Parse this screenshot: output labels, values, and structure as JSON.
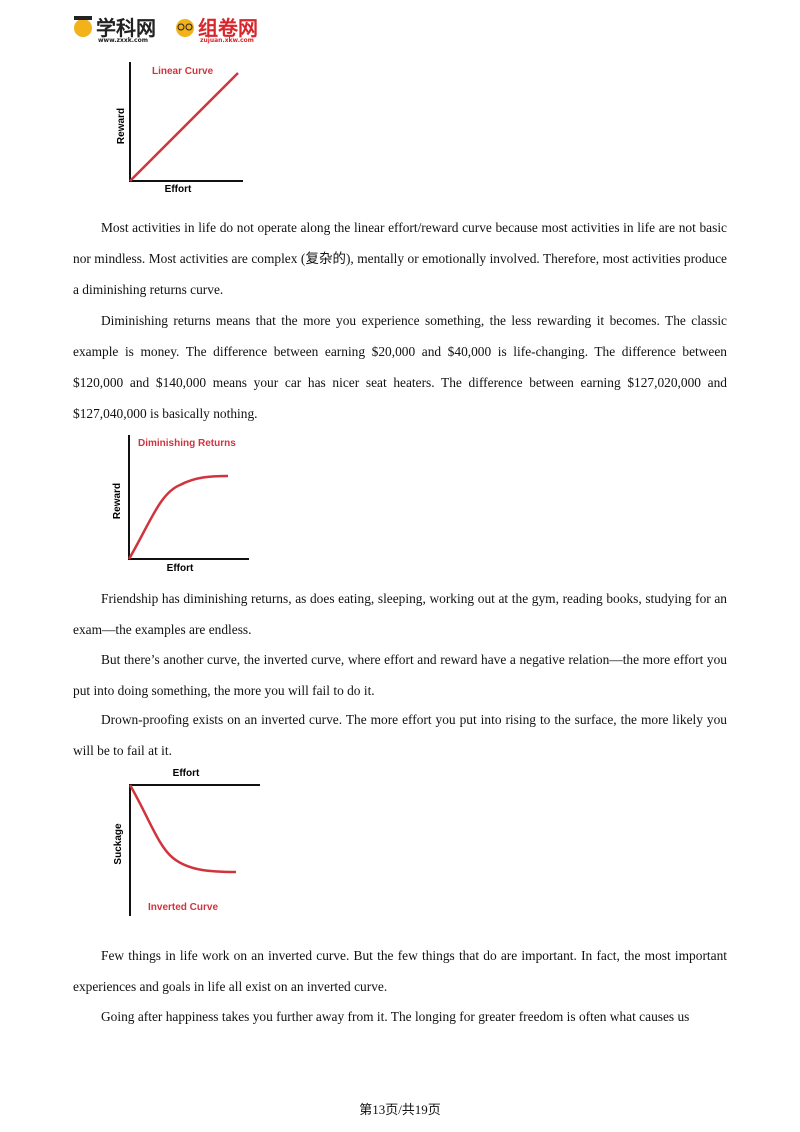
{
  "header": {
    "logo1": "学科网",
    "logo1_url": "www.zxxk.com",
    "logo2": "组卷网",
    "logo2_url": "zujuan.xkw.com"
  },
  "figures": [
    {
      "title": "Linear Curve",
      "y_label": "Reward",
      "x_label": "Effort"
    },
    {
      "title": "Diminishing Returns",
      "y_label": "Reward",
      "x_label": "Effort"
    },
    {
      "title": "Inverted Curve",
      "y_label": "Suckage",
      "x_label": "Effort"
    }
  ],
  "paragraphs": [
    "Most activities in life do not operate along the linear effort/reward curve because most activities in life are not basic nor mindless. Most activities are complex (复杂的), mentally or emotionally involved. Therefore, most activities produce a diminishing returns curve.",
    "Diminishing returns means that the more you experience something, the less rewarding it becomes. The classic example is money. The difference between earning $20,000 and $40,000 is life-changing. The difference between $120,000 and $140,000 means your car has nicer seat heaters. The difference between earning $127,020,000 and $127,040,000 is basically nothing.",
    "Friendship has diminishing returns, as does eating, sleeping, working out at the gym, reading books, studying for an exam—the examples are endless.",
    "But there’s another curve, the inverted curve, where effort and reward have a negative relation—the more effort you put into doing something, the more you will fail to do it.",
    "Drown-proofing exists on an inverted curve. The more effort you put into rising to the surface, the more likely you will be to fail at it.",
    "Few things in life work on an inverted curve. But the few things that do are important. In fact, the most important experiences and goals in life all exist on an inverted curve.",
    "Going after happiness takes you further away from it. The longing for greater freedom is often what causes us"
  ],
  "footer": {
    "page": "第13页/共19页"
  }
}
